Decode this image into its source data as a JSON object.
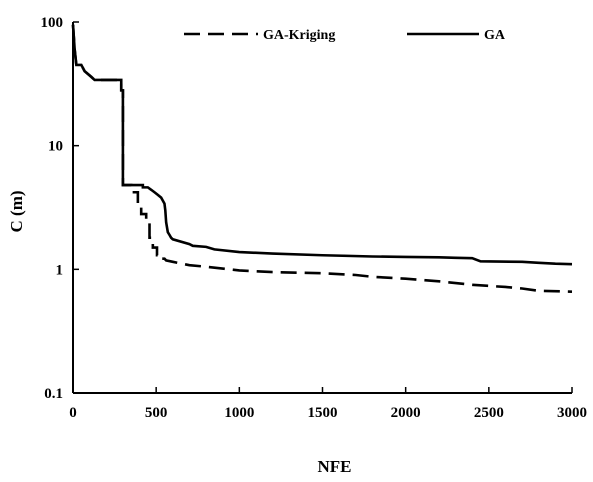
{
  "chart_data": {
    "type": "line",
    "xlabel": "NFE",
    "ylabel": "C  (m)",
    "xlim": [
      0,
      3000
    ],
    "ylim": [
      0.1,
      100
    ],
    "yscale": "log",
    "grid": false,
    "legend_position": "top",
    "x_ticks": [
      "0",
      "500",
      "1000",
      "1500",
      "2000",
      "2500",
      "3000"
    ],
    "y_ticks": [
      "0.1",
      "1",
      "10",
      "100"
    ],
    "series": [
      {
        "name": "GA-Kriging",
        "style": "dashed",
        "color": "#000000",
        "points": [
          [
            0,
            95
          ],
          [
            10,
            60
          ],
          [
            20,
            45
          ],
          [
            50,
            45
          ],
          [
            70,
            40
          ],
          [
            110,
            36
          ],
          [
            130,
            34
          ],
          [
            290,
            34
          ],
          [
            290,
            28
          ],
          [
            300,
            28
          ],
          [
            300,
            4.8
          ],
          [
            350,
            4.8
          ],
          [
            350,
            4.2
          ],
          [
            390,
            4.2
          ],
          [
            390,
            3.3
          ],
          [
            410,
            3.3
          ],
          [
            410,
            2.8
          ],
          [
            440,
            2.8
          ],
          [
            440,
            2.4
          ],
          [
            460,
            2.4
          ],
          [
            460,
            1.8
          ],
          [
            480,
            1.8
          ],
          [
            480,
            1.5
          ],
          [
            505,
            1.5
          ],
          [
            505,
            1.3
          ],
          [
            520,
            1.3
          ],
          [
            520,
            1.22
          ],
          [
            550,
            1.22
          ],
          [
            560,
            1.18
          ],
          [
            600,
            1.15
          ],
          [
            700,
            1.08
          ],
          [
            800,
            1.05
          ],
          [
            1000,
            0.98
          ],
          [
            1200,
            0.95
          ],
          [
            1500,
            0.93
          ],
          [
            1700,
            0.9
          ],
          [
            1800,
            0.87
          ],
          [
            2000,
            0.84
          ],
          [
            2200,
            0.8
          ],
          [
            2400,
            0.75
          ],
          [
            2600,
            0.72
          ],
          [
            2700,
            0.7
          ],
          [
            2800,
            0.67
          ],
          [
            3000,
            0.66
          ]
        ]
      },
      {
        "name": "GA",
        "style": "solid",
        "color": "#000000",
        "points": [
          [
            0,
            95
          ],
          [
            10,
            60
          ],
          [
            20,
            45
          ],
          [
            50,
            45
          ],
          [
            70,
            40
          ],
          [
            110,
            36
          ],
          [
            130,
            34
          ],
          [
            290,
            34
          ],
          [
            290,
            28
          ],
          [
            300,
            28
          ],
          [
            300,
            4.8
          ],
          [
            420,
            4.8
          ],
          [
            420,
            4.6
          ],
          [
            450,
            4.6
          ],
          [
            470,
            4.4
          ],
          [
            490,
            4.2
          ],
          [
            510,
            4.0
          ],
          [
            530,
            3.8
          ],
          [
            550,
            3.4
          ],
          [
            555,
            3.0
          ],
          [
            560,
            2.4
          ],
          [
            570,
            2.0
          ],
          [
            580,
            1.9
          ],
          [
            590,
            1.8
          ],
          [
            600,
            1.75
          ],
          [
            700,
            1.6
          ],
          [
            720,
            1.55
          ],
          [
            800,
            1.52
          ],
          [
            850,
            1.45
          ],
          [
            1000,
            1.38
          ],
          [
            1200,
            1.34
          ],
          [
            1500,
            1.3
          ],
          [
            1800,
            1.27
          ],
          [
            2000,
            1.26
          ],
          [
            2200,
            1.25
          ],
          [
            2300,
            1.24
          ],
          [
            2400,
            1.23
          ],
          [
            2450,
            1.16
          ],
          [
            2700,
            1.15
          ],
          [
            2800,
            1.13
          ],
          [
            2900,
            1.11
          ],
          [
            3000,
            1.1
          ]
        ]
      }
    ]
  }
}
